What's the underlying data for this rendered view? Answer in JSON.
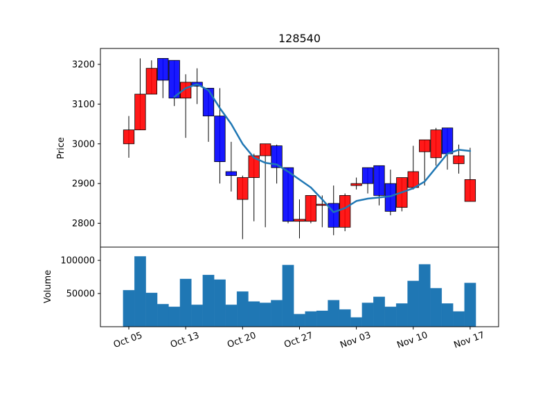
{
  "chart_data": {
    "type": "candlestick",
    "title": "128540",
    "price_panel": {
      "ylabel": "Price",
      "ylim": [
        2740,
        3240
      ],
      "yticks": [
        2800,
        2900,
        3000,
        3100,
        3200
      ],
      "up_color": "#ff0000",
      "down_color": "#0000ff",
      "moving_average_color": "#1f77b4"
    },
    "volume_panel": {
      "ylabel": "Volume",
      "ylim": [
        0,
        120000
      ],
      "yticks": [
        50000,
        100000
      ],
      "ytick_labels": [
        "50000",
        "100000"
      ],
      "bar_color": "#1f77b4"
    },
    "x_ticks": [
      {
        "label": "Oct 05",
        "index": 0
      },
      {
        "label": "Oct 13",
        "index": 5
      },
      {
        "label": "Oct 20",
        "index": 10
      },
      {
        "label": "Oct 27",
        "index": 15
      },
      {
        "label": "Nov 03",
        "index": 20
      },
      {
        "label": "Nov 10",
        "index": 25
      },
      {
        "label": "Nov 17",
        "index": 30
      }
    ],
    "candles": [
      {
        "open": 3000,
        "high": 3070,
        "low": 2965,
        "close": 3035,
        "volume": 55000
      },
      {
        "open": 3035,
        "high": 3215,
        "low": 3035,
        "close": 3125,
        "volume": 106000
      },
      {
        "open": 3125,
        "high": 3210,
        "low": 3125,
        "close": 3190,
        "volume": 51000
      },
      {
        "open": 3215,
        "high": 3215,
        "low": 3115,
        "close": 3160,
        "volume": 34000
      },
      {
        "open": 3210,
        "high": 3210,
        "low": 3095,
        "close": 3115,
        "volume": 30000
      },
      {
        "open": 3115,
        "high": 3175,
        "low": 3015,
        "close": 3155,
        "volume": 72000
      },
      {
        "open": 3155,
        "high": 3190,
        "low": 3100,
        "close": 3145,
        "volume": 33000
      },
      {
        "open": 3140,
        "high": 3140,
        "low": 3005,
        "close": 3070,
        "volume": 78000
      },
      {
        "open": 3070,
        "high": 3140,
        "low": 2900,
        "close": 2955,
        "volume": 71000
      },
      {
        "open": 2930,
        "high": 3005,
        "low": 2880,
        "close": 2920,
        "volume": 33000
      },
      {
        "open": 2860,
        "high": 2920,
        "low": 2760,
        "close": 2915,
        "volume": 53000
      },
      {
        "open": 2915,
        "high": 2975,
        "low": 2805,
        "close": 2970,
        "volume": 38000
      },
      {
        "open": 2970,
        "high": 3000,
        "low": 2790,
        "close": 3000,
        "volume": 36000
      },
      {
        "open": 2995,
        "high": 2998,
        "low": 2900,
        "close": 2940,
        "volume": 40000
      },
      {
        "open": 2940,
        "high": 2940,
        "low": 2800,
        "close": 2805,
        "volume": 93000
      },
      {
        "open": 2805,
        "high": 2860,
        "low": 2762,
        "close": 2810,
        "volume": 19000
      },
      {
        "open": 2805,
        "high": 2870,
        "low": 2800,
        "close": 2870,
        "volume": 23000
      },
      {
        "open": 2845,
        "high": 2870,
        "low": 2790,
        "close": 2848,
        "volume": 24000
      },
      {
        "open": 2850,
        "high": 2895,
        "low": 2770,
        "close": 2790,
        "volume": 40000
      },
      {
        "open": 2790,
        "high": 2875,
        "low": 2780,
        "close": 2870,
        "volume": 26000
      },
      {
        "open": 2895,
        "high": 2915,
        "low": 2885,
        "close": 2900,
        "volume": 14000
      },
      {
        "open": 2940,
        "high": 2940,
        "low": 2875,
        "close": 2900,
        "volume": 36000
      },
      {
        "open": 2945,
        "high": 2945,
        "low": 2845,
        "close": 2870,
        "volume": 45000
      },
      {
        "open": 2900,
        "high": 2935,
        "low": 2820,
        "close": 2830,
        "volume": 30000
      },
      {
        "open": 2840,
        "high": 2915,
        "low": 2830,
        "close": 2915,
        "volume": 35000
      },
      {
        "open": 2890,
        "high": 2995,
        "low": 2885,
        "close": 2930,
        "volume": 69000
      },
      {
        "open": 2980,
        "high": 3010,
        "low": 2895,
        "close": 3010,
        "volume": 94000
      },
      {
        "open": 2965,
        "high": 3040,
        "low": 2945,
        "close": 3035,
        "volume": 58000
      },
      {
        "open": 3040,
        "high": 3040,
        "low": 2935,
        "close": 2975,
        "volume": 35000
      },
      {
        "open": 2950,
        "high": 2998,
        "low": 2925,
        "close": 2970,
        "volume": 23000
      },
      {
        "open": 2855,
        "high": 2990,
        "low": 2855,
        "close": 2910,
        "volume": 66000
      }
    ],
    "moving_average": [
      {
        "index": 4,
        "value": 3118
      },
      {
        "index": 5,
        "value": 3140
      },
      {
        "index": 6,
        "value": 3150
      },
      {
        "index": 7,
        "value": 3135
      },
      {
        "index": 8,
        "value": 3090
      },
      {
        "index": 9,
        "value": 3050
      },
      {
        "index": 10,
        "value": 3000
      },
      {
        "index": 11,
        "value": 2965
      },
      {
        "index": 12,
        "value": 2952
      },
      {
        "index": 13,
        "value": 2948
      },
      {
        "index": 14,
        "value": 2930
      },
      {
        "index": 15,
        "value": 2910
      },
      {
        "index": 16,
        "value": 2890
      },
      {
        "index": 17,
        "value": 2860
      },
      {
        "index": 18,
        "value": 2828
      },
      {
        "index": 19,
        "value": 2838
      },
      {
        "index": 20,
        "value": 2856
      },
      {
        "index": 21,
        "value": 2862
      },
      {
        "index": 22,
        "value": 2865
      },
      {
        "index": 23,
        "value": 2868
      },
      {
        "index": 24,
        "value": 2878
      },
      {
        "index": 25,
        "value": 2888
      },
      {
        "index": 26,
        "value": 2905
      },
      {
        "index": 27,
        "value": 2940
      },
      {
        "index": 28,
        "value": 2975
      },
      {
        "index": 29,
        "value": 2985
      },
      {
        "index": 30,
        "value": 2982
      }
    ]
  }
}
